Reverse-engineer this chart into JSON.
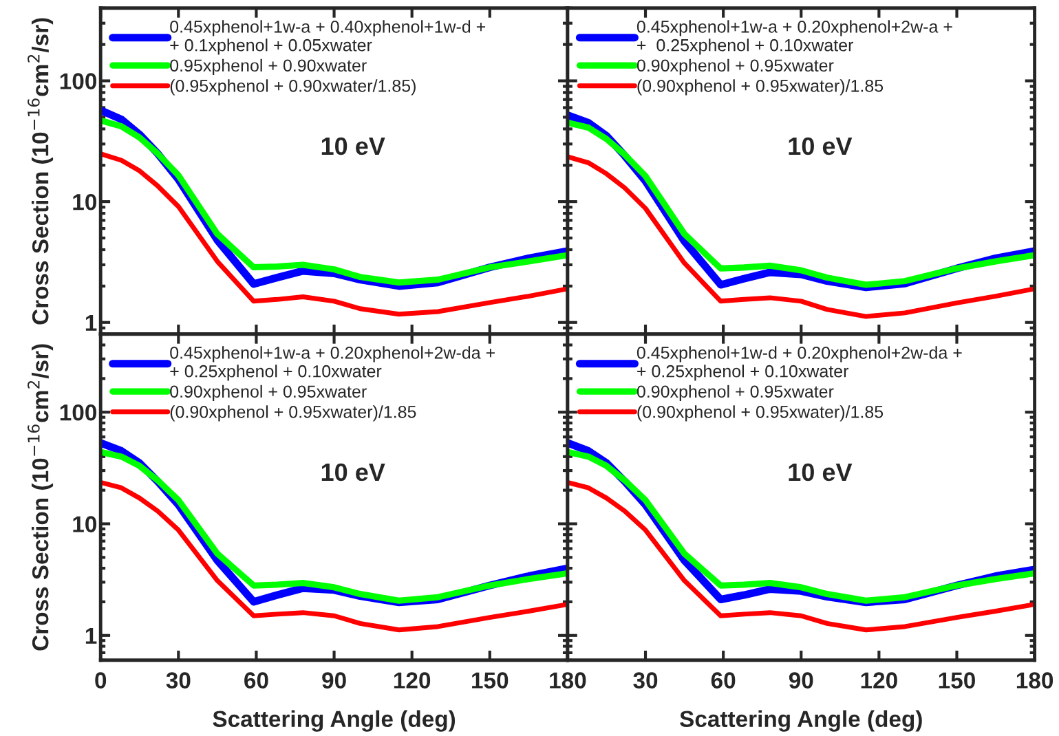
{
  "chart_data": [
    {
      "type": "line",
      "x": [
        0,
        8,
        15,
        22,
        30,
        45,
        59,
        68,
        78,
        90,
        100,
        115,
        130,
        150,
        165,
        180
      ],
      "xlim": [
        0,
        180
      ],
      "xticks": [
        0,
        30,
        60,
        90,
        120,
        150,
        180
      ],
      "ylim": [
        0.8,
        400
      ],
      "yticks": [
        1,
        10,
        100
      ],
      "log": "y",
      "tick_labels": "y",
      "legend": "top left",
      "ylabel": "Cross Section (10$^{−16}$cm$^{2}$/sr)",
      "annotations": [
        "10 eV"
      ],
      "series": [
        {
          "name": "0.45xphenol+1w-a + 0.40xphenol+1w-d +\n+ 0.1xphenol + 0.05xwater",
          "color": "#0000ff",
          "values": [
            57,
            48,
            36,
            25,
            15.3,
            4.8,
            2.08,
            2.35,
            2.67,
            2.55,
            2.26,
            2.0,
            2.14,
            2.86,
            3.4,
            3.9
          ]
        },
        {
          "name": "0.95xphenol + 0.90xwater",
          "color": "#00ff00",
          "values": [
            47,
            42,
            34,
            25,
            16.5,
            5.4,
            2.86,
            2.9,
            3.0,
            2.75,
            2.38,
            2.14,
            2.26,
            2.86,
            3.2,
            3.6
          ]
        },
        {
          "name": "(0.95xphenol + 0.90xwater/1.85)",
          "color": "#ff0000",
          "values": [
            24.9,
            22,
            18,
            13.5,
            9.1,
            3.2,
            1.5,
            1.55,
            1.63,
            1.5,
            1.3,
            1.17,
            1.23,
            1.46,
            1.65,
            1.9
          ]
        }
      ]
    },
    {
      "type": "line",
      "x": [
        0,
        8,
        15,
        22,
        30,
        45,
        59,
        68,
        78,
        90,
        100,
        115,
        130,
        150,
        165,
        180
      ],
      "xlim": [
        0,
        180
      ],
      "xticks": [
        0,
        30,
        60,
        90,
        120,
        150,
        180
      ],
      "ylim": [
        0.8,
        400
      ],
      "yticks": [
        1,
        10,
        100
      ],
      "log": "y",
      "tick_labels": false,
      "legend": "top left",
      "annotations": [
        "10 eV"
      ],
      "series": [
        {
          "name": "0.45xphenol+1w-a + 0.20xphenol+2w-a +\n+  0.25xphenol + 0.10xwater",
          "color": "#0000ff",
          "values": [
            52,
            45,
            35,
            24,
            14.8,
            4.7,
            2.05,
            2.3,
            2.6,
            2.5,
            2.2,
            1.95,
            2.1,
            2.8,
            3.4,
            3.9
          ]
        },
        {
          "name": "0.90xphenol + 0.95xwater",
          "color": "#00ff00",
          "values": [
            45,
            41,
            33,
            24.5,
            16.3,
            5.4,
            2.8,
            2.85,
            2.95,
            2.7,
            2.35,
            2.05,
            2.2,
            2.8,
            3.2,
            3.6
          ]
        },
        {
          "name": "(0.90xphenol + 0.95xwater)/1.85",
          "color": "#ff0000",
          "values": [
            23.5,
            21,
            17,
            13,
            8.8,
            3.1,
            1.5,
            1.55,
            1.6,
            1.5,
            1.28,
            1.12,
            1.2,
            1.45,
            1.65,
            1.9
          ]
        }
      ]
    },
    {
      "type": "line",
      "x": [
        0,
        8,
        15,
        22,
        30,
        45,
        59,
        68,
        78,
        90,
        100,
        115,
        130,
        150,
        165,
        180
      ],
      "xlim": [
        0,
        180
      ],
      "xticks": [
        0,
        30,
        60,
        90,
        120,
        150,
        180
      ],
      "ylim": [
        0.6,
        500
      ],
      "yticks": [
        1,
        10,
        100
      ],
      "log": "y",
      "legend": "top left",
      "xlabel": "Scattering Angle (deg)",
      "ylabel": "Cross Section (10$^{−16}$cm$^{2}$/sr)",
      "annotations": [
        "10 eV"
      ],
      "series": [
        {
          "name": "0.45xphenol+1w-a + 0.20xphenol+2w-da +\n+ 0.25xphenol + 0.10xwater",
          "color": "#0000ff",
          "values": [
            53,
            45,
            35,
            24,
            14.8,
            4.7,
            2.0,
            2.3,
            2.65,
            2.55,
            2.25,
            1.98,
            2.1,
            2.8,
            3.4,
            4.0
          ]
        },
        {
          "name": "0.90xphenol + 0.95xwater",
          "color": "#00ff00",
          "values": [
            44,
            40,
            33,
            24.5,
            16.3,
            5.4,
            2.8,
            2.85,
            2.95,
            2.7,
            2.35,
            2.05,
            2.2,
            2.8,
            3.2,
            3.6
          ]
        },
        {
          "name": "(0.90xphenol + 0.95xwater)/1.85",
          "color": "#ff0000",
          "values": [
            23.5,
            21,
            17,
            13,
            8.8,
            3.1,
            1.5,
            1.55,
            1.6,
            1.5,
            1.28,
            1.12,
            1.2,
            1.45,
            1.65,
            1.9
          ]
        }
      ]
    },
    {
      "type": "line",
      "x": [
        0,
        8,
        15,
        22,
        30,
        45,
        59,
        68,
        78,
        90,
        100,
        115,
        130,
        150,
        165,
        180
      ],
      "xlim": [
        0,
        180
      ],
      "xticks": [
        {
          "value": 0,
          "label": null
        },
        30,
        60,
        90,
        120,
        150,
        180
      ],
      "ylim": [
        0.6,
        500
      ],
      "yticks": [
        1,
        10,
        100
      ],
      "log": "y",
      "tick_labels": "x",
      "legend": "top left",
      "xlabel": "Scattering Angle (deg)",
      "annotations": [
        "10 eV"
      ],
      "series": [
        {
          "name": "0.45xphenol+1w-d + 0.20xphenol+2w-da +\n+ 0.25xphenol + 0.10xwater",
          "color": "#0000ff",
          "values": [
            53,
            45,
            35,
            24,
            14.8,
            4.7,
            2.1,
            2.3,
            2.6,
            2.5,
            2.22,
            1.98,
            2.1,
            2.8,
            3.4,
            3.9
          ]
        },
        {
          "name": "0.90xphenol + 0.95xwater",
          "color": "#00ff00",
          "values": [
            44,
            40,
            33,
            24.5,
            16.3,
            5.4,
            2.8,
            2.85,
            2.95,
            2.7,
            2.35,
            2.05,
            2.2,
            2.8,
            3.2,
            3.6
          ]
        },
        {
          "name": "(0.90xphenol + 0.95xwater)/1.85",
          "color": "#ff0000",
          "values": [
            23.5,
            21,
            17,
            13,
            8.8,
            3.1,
            1.5,
            1.55,
            1.6,
            1.5,
            1.28,
            1.12,
            1.2,
            1.45,
            1.65,
            1.9
          ]
        }
      ]
    }
  ]
}
